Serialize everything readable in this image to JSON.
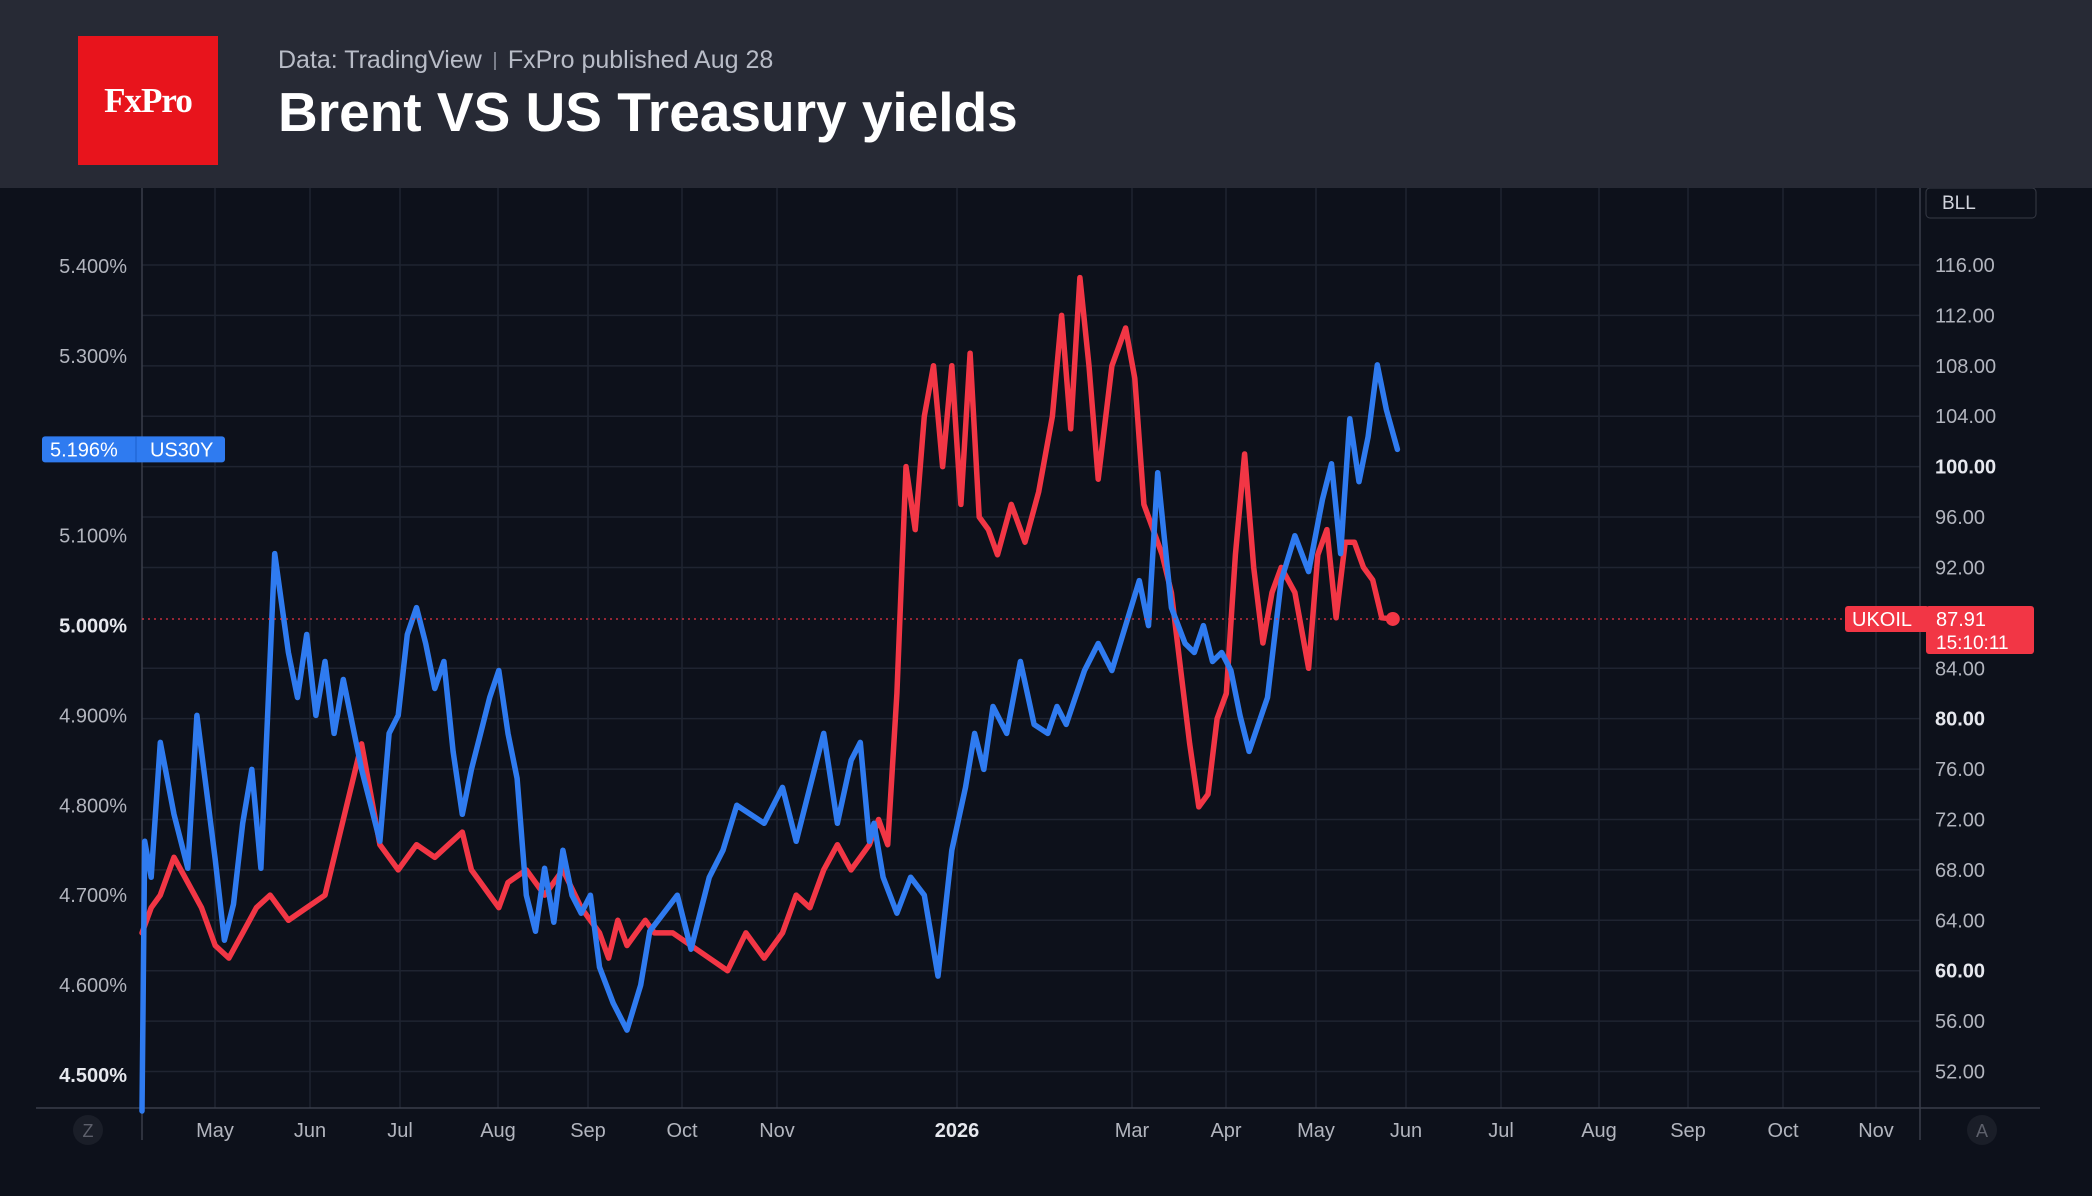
{
  "header": {
    "logo_text": "FxPro",
    "source": "Data: TradingView",
    "publisher": "FxPro published Aug 28",
    "title": "Brent VS US Treasury yields"
  },
  "colors": {
    "background": "#0d111b",
    "header_background": "#272a35",
    "logo_red": "#e8141c",
    "us30y_line": "#2f7bf0",
    "ukoil_line": "#f23645",
    "grid": "#1f2431"
  },
  "controls": {
    "scale_button": "BLL",
    "left_corner_button": "Z",
    "right_corner_button": "A"
  },
  "chart_data": {
    "type": "line",
    "x_axis": {
      "tick_labels": [
        "May",
        "Jun",
        "Jul",
        "Aug",
        "Sep",
        "Oct",
        "Nov",
        "2026",
        "Mar",
        "Apr",
        "May",
        "Jun",
        "Jul",
        "Aug",
        "Sep",
        "Oct",
        "Nov"
      ]
    },
    "left_axis": {
      "unit": "%",
      "range": [
        4.5,
        5.4
      ],
      "tick_labels": [
        "5.400%",
        "5.300%",
        "5.100%",
        "5.000%",
        "4.900%",
        "4.800%",
        "4.700%",
        "4.600%",
        "4.500%"
      ],
      "bold_ticks": [
        "5.000%",
        "4.500%"
      ]
    },
    "right_axis": {
      "range": [
        52,
        116
      ],
      "tick_labels": [
        "116.00",
        "112.00",
        "108.00",
        "104.00",
        "100.00",
        "96.00",
        "92.00",
        "84.00",
        "80.00",
        "76.00",
        "72.00",
        "68.00",
        "64.00",
        "60.00",
        "56.00",
        "52.00"
      ],
      "bold_ticks": [
        "100.00",
        "80.00",
        "60.00"
      ]
    },
    "grid": true,
    "series": [
      {
        "name": "US30Y",
        "axis": "left",
        "last_value_label": "5.196%",
        "x": [
          0.0,
          0.03,
          0.1,
          0.2,
          0.35,
          0.5,
          0.6,
          0.7,
          0.8,
          0.9,
          1.0,
          1.1,
          1.2,
          1.3,
          1.45,
          1.6,
          1.7,
          1.8,
          1.9,
          2.0,
          2.1,
          2.2,
          2.3,
          2.4,
          2.5,
          2.6,
          2.7,
          2.8,
          2.9,
          3.0,
          3.1,
          3.2,
          3.3,
          3.4,
          3.5,
          3.6,
          3.7,
          3.8,
          3.9,
          4.0,
          4.1,
          4.2,
          4.3,
          4.4,
          4.5,
          4.6,
          4.7,
          4.8,
          4.9,
          5.0,
          5.15,
          5.3,
          5.45,
          5.55,
          5.7,
          5.85,
          6.0,
          6.1,
          6.2,
          6.35,
          6.5,
          6.65,
          6.8,
          7.0,
          7.15,
          7.3,
          7.45,
          7.6,
          7.75,
          7.85,
          7.95,
          8.0,
          8.1,
          8.25,
          8.4,
          8.55,
          8.7,
          8.85,
          9.0,
          9.1,
          9.2,
          9.3,
          9.45,
          9.6,
          9.75,
          9.9,
          10.0,
          10.1,
          10.2,
          10.3,
          10.45,
          10.6,
          10.75,
          10.9,
          11.0,
          11.1,
          11.25,
          11.4,
          11.5,
          11.6,
          11.7,
          11.8,
          11.9,
          12.0,
          12.1,
          12.2,
          12.3,
          12.45,
          12.6,
          12.75,
          12.9,
          13.0,
          13.1,
          13.2,
          13.3,
          13.4,
          13.5,
          13.6
        ],
        "y": [
          4.46,
          4.76,
          4.72,
          4.87,
          4.79,
          4.73,
          4.9,
          4.82,
          4.74,
          4.65,
          4.69,
          4.78,
          4.84,
          4.73,
          5.08,
          4.97,
          4.92,
          4.99,
          4.9,
          4.96,
          4.88,
          4.94,
          4.89,
          4.84,
          4.8,
          4.76,
          4.88,
          4.9,
          4.99,
          5.02,
          4.98,
          4.93,
          4.96,
          4.86,
          4.79,
          4.84,
          4.88,
          4.92,
          4.95,
          4.88,
          4.83,
          4.7,
          4.66,
          4.73,
          4.67,
          4.75,
          4.7,
          4.68,
          4.7,
          4.62,
          4.58,
          4.55,
          4.6,
          4.66,
          4.68,
          4.7,
          4.64,
          4.68,
          4.72,
          4.75,
          4.8,
          4.79,
          4.78,
          4.82,
          4.76,
          4.82,
          4.88,
          4.78,
          4.85,
          4.87,
          4.76,
          4.78,
          4.72,
          4.68,
          4.72,
          4.7,
          4.61,
          4.75,
          4.82,
          4.88,
          4.84,
          4.91,
          4.88,
          4.96,
          4.89,
          4.88,
          4.91,
          4.89,
          4.92,
          4.95,
          4.98,
          4.95,
          5.0,
          5.05,
          5.0,
          5.17,
          5.02,
          4.98,
          4.97,
          5.0,
          4.96,
          4.97,
          4.95,
          4.9,
          4.86,
          4.89,
          4.92,
          5.05,
          5.1,
          5.06,
          5.14,
          5.18,
          5.08,
          5.23,
          5.16,
          5.21,
          5.29,
          5.24
        ],
        "end_y": 5.196
      },
      {
        "name": "UKOIL",
        "axis": "right",
        "last_value_label": "87.91",
        "countdown_label": "15:10:11",
        "x": [
          0.0,
          0.1,
          0.2,
          0.35,
          0.5,
          0.65,
          0.8,
          0.95,
          1.1,
          1.25,
          1.4,
          1.6,
          1.8,
          2.0,
          2.2,
          2.4,
          2.6,
          2.8,
          3.0,
          3.2,
          3.35,
          3.5,
          3.6,
          3.7,
          3.8,
          3.9,
          4.0,
          4.2,
          4.4,
          4.6,
          4.8,
          5.0,
          5.1,
          5.2,
          5.3,
          5.4,
          5.5,
          5.6,
          5.8,
          6.0,
          6.2,
          6.4,
          6.6,
          6.8,
          7.0,
          7.15,
          7.3,
          7.45,
          7.6,
          7.75,
          7.85,
          7.95,
          8.05,
          8.15,
          8.25,
          8.35,
          8.45,
          8.55,
          8.65,
          8.75,
          8.85,
          8.95,
          9.05,
          9.15,
          9.25,
          9.35,
          9.5,
          9.65,
          9.8,
          9.95,
          10.05,
          10.15,
          10.25,
          10.35,
          10.45,
          10.6,
          10.75,
          10.85,
          10.95,
          11.05,
          11.15,
          11.25,
          11.35,
          11.45,
          11.55,
          11.65,
          11.75,
          11.85,
          11.95,
          12.05,
          12.15,
          12.25,
          12.35,
          12.45,
          12.6,
          12.75,
          12.85,
          12.95,
          13.05,
          13.15,
          13.25,
          13.35,
          13.45,
          13.55
        ],
        "y": [
          63,
          65,
          66,
          69,
          67,
          65,
          62,
          61,
          63,
          65,
          66,
          64,
          65,
          66,
          72,
          78,
          70,
          68,
          70,
          69,
          70,
          71,
          68,
          67,
          66,
          65,
          67,
          68,
          66,
          68,
          65,
          63,
          61,
          64,
          62,
          63,
          64,
          63,
          63,
          62,
          61,
          60,
          63,
          61,
          63,
          66,
          65,
          68,
          70,
          68,
          69,
          70,
          72,
          70,
          82,
          100,
          95,
          104,
          108,
          100,
          108,
          97,
          109,
          96,
          95,
          93,
          97,
          94,
          98,
          104,
          112,
          103,
          115,
          108,
          99,
          108,
          111,
          107,
          97,
          95,
          93,
          90,
          84,
          78,
          73,
          74,
          80,
          82,
          93,
          101,
          92,
          86,
          90,
          92,
          90,
          84,
          93,
          95,
          88,
          94,
          94,
          92,
          91,
          88
        ],
        "end_y": 87.91
      }
    ]
  }
}
